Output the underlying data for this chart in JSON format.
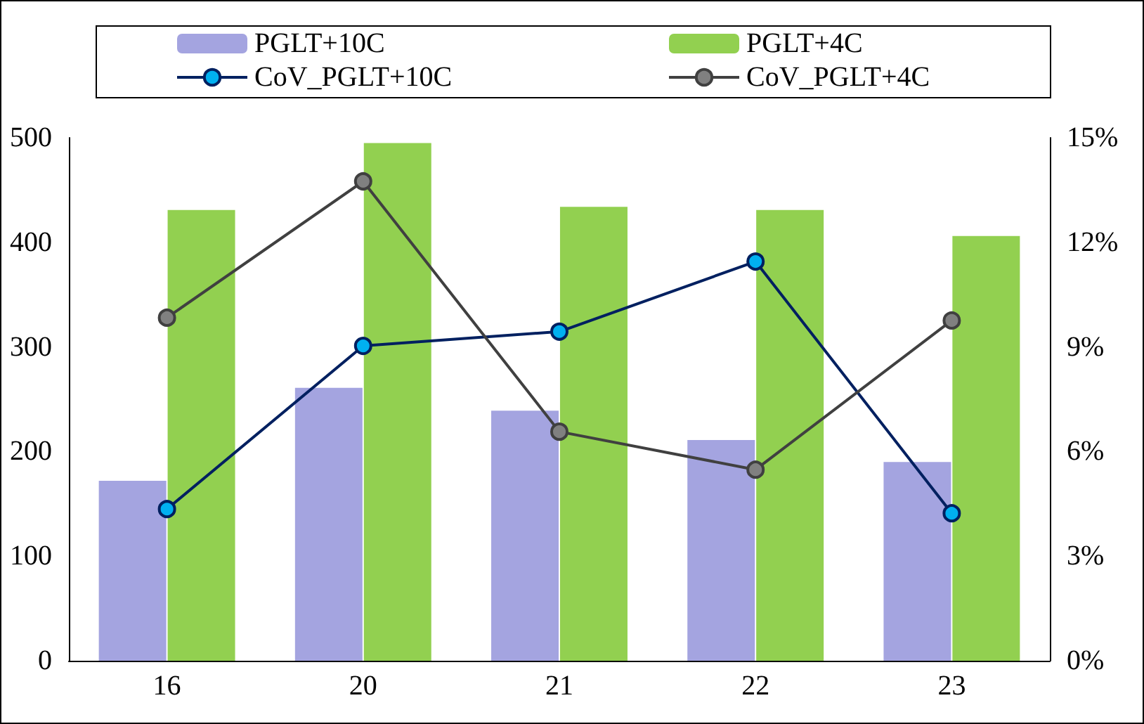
{
  "chart_data": {
    "type": "bar",
    "categories": [
      "16",
      "20",
      "21",
      "22",
      "23"
    ],
    "series": [
      {
        "name": "PGLT+10C",
        "color": "#a4a4e0",
        "values": [
          172,
          261,
          239,
          211,
          190
        ]
      },
      {
        "name": "PGLT+4C",
        "color": "#92d050",
        "values": [
          431,
          495,
          434,
          431,
          406
        ]
      },
      {
        "name": "CoV_PGLT+10C",
        "type": "line",
        "axis": "y2",
        "color": "#002060",
        "values": [
          4.35,
          9.03,
          9.44,
          11.45,
          4.23
        ]
      },
      {
        "name": "CoV_PGLT+4C",
        "type": "line",
        "axis": "y2",
        "color": "#404040",
        "values": [
          9.84,
          13.75,
          6.57,
          5.48,
          9.76
        ]
      }
    ],
    "ylim": [
      0,
      500
    ],
    "yticks": [
      0,
      100,
      200,
      300,
      400,
      500
    ],
    "y2lim": [
      0,
      15
    ],
    "y2ticks": [
      {
        "value": 0,
        "label": "0%"
      },
      {
        "value": 3,
        "label": "3%"
      },
      {
        "value": 6,
        "label": "6%"
      },
      {
        "value": 9,
        "label": "9%"
      },
      {
        "value": 12,
        "label": "12%"
      },
      {
        "value": 15,
        "label": "15%"
      }
    ],
    "marker": "circle",
    "grid": false,
    "legend": "top"
  }
}
